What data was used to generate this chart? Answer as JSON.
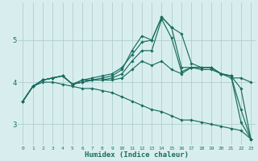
{
  "xlabel": "Humidex (Indice chaleur)",
  "ylabel": "",
  "bg_color": "#d8eeee",
  "grid_color": "#b0cece",
  "line_color": "#1a6e60",
  "xlim": [
    -0.5,
    23.5
  ],
  "ylim": [
    2.5,
    5.9
  ],
  "yticks": [
    3,
    4,
    5
  ],
  "xticks": [
    0,
    1,
    2,
    3,
    4,
    5,
    6,
    7,
    8,
    9,
    10,
    11,
    12,
    13,
    14,
    15,
    16,
    17,
    18,
    19,
    20,
    21,
    22,
    23
  ],
  "lines": [
    [
      3.55,
      3.9,
      4.05,
      4.1,
      4.15,
      3.95,
      4.05,
      4.05,
      4.1,
      4.15,
      4.3,
      4.75,
      5.1,
      5.0,
      5.55,
      5.3,
      5.15,
      4.45,
      4.35,
      4.35,
      4.2,
      4.15,
      3.05,
      2.65
    ],
    [
      3.55,
      3.9,
      4.05,
      4.1,
      4.15,
      3.95,
      4.05,
      4.1,
      4.15,
      4.2,
      4.35,
      4.65,
      4.95,
      5.0,
      5.55,
      5.3,
      4.35,
      4.35,
      4.35,
      4.35,
      4.2,
      4.15,
      3.35,
      2.65
    ],
    [
      3.55,
      3.9,
      4.05,
      4.1,
      4.15,
      3.95,
      4.0,
      4.05,
      4.05,
      4.1,
      4.2,
      4.5,
      4.75,
      4.75,
      5.5,
      5.05,
      4.25,
      4.35,
      4.35,
      4.35,
      4.2,
      4.15,
      3.85,
      2.65
    ],
    [
      3.55,
      3.9,
      4.05,
      4.1,
      4.15,
      3.95,
      4.0,
      4.05,
      4.05,
      4.05,
      4.1,
      4.3,
      4.5,
      4.4,
      4.5,
      4.3,
      4.2,
      4.35,
      4.3,
      4.3,
      4.2,
      4.1,
      4.1,
      4.0
    ],
    [
      3.55,
      3.9,
      4.0,
      4.0,
      3.95,
      3.9,
      3.85,
      3.85,
      3.8,
      3.75,
      3.65,
      3.55,
      3.45,
      3.35,
      3.3,
      3.2,
      3.1,
      3.1,
      3.05,
      3.0,
      2.95,
      2.9,
      2.85,
      2.65
    ]
  ]
}
